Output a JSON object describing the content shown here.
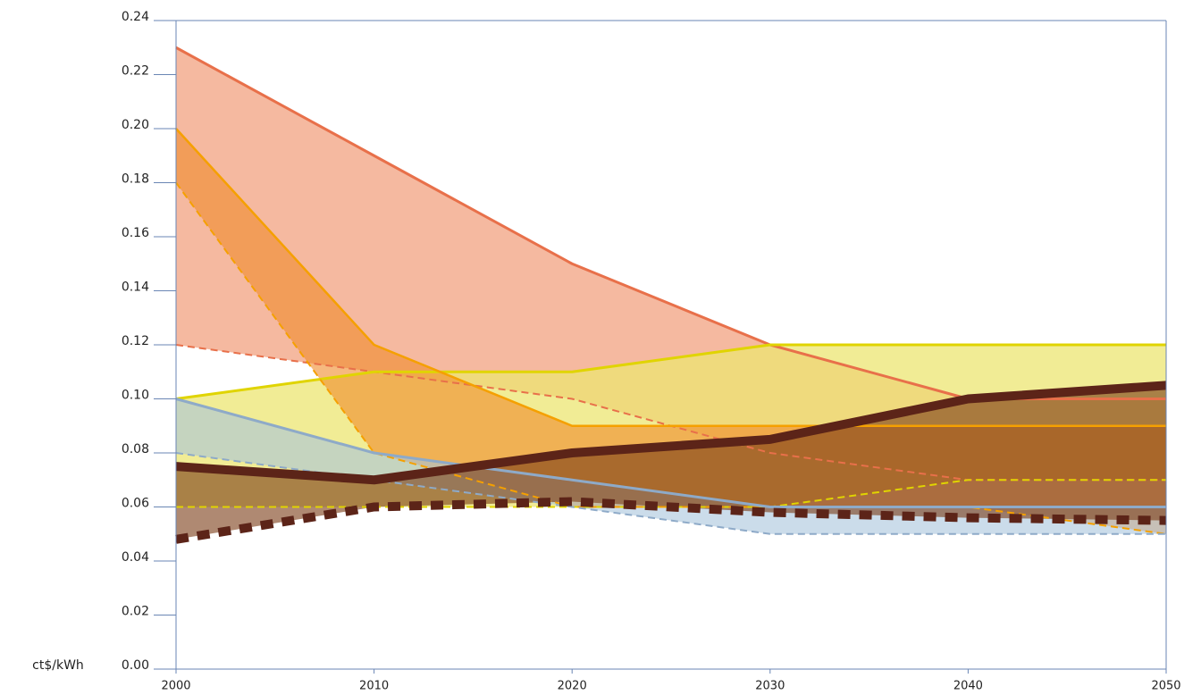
{
  "chart_data": {
    "type": "area",
    "ylabel": "ct$/kWh",
    "x": [
      2000,
      2010,
      2020,
      2030,
      2040,
      2050
    ],
    "xlim": [
      2000,
      2050
    ],
    "xticks": [
      2000,
      2010,
      2020,
      2030,
      2040,
      2050
    ],
    "ylim": [
      0,
      0.24
    ],
    "yticks": [
      {
        "value": 0,
        "label": "0.00"
      },
      {
        "value": 0.02,
        "label": "0.02"
      },
      {
        "value": 0.04,
        "label": "0.04"
      },
      {
        "value": 0.06,
        "label": "0.06"
      },
      {
        "value": 0.08,
        "label": "0.08"
      },
      {
        "value": 0.1,
        "label": "0.10"
      },
      {
        "value": 0.12,
        "label": "0.12"
      },
      {
        "value": 0.14,
        "label": "0.14"
      },
      {
        "value": 0.16,
        "label": "0.16"
      },
      {
        "value": 0.18,
        "label": "0.18"
      },
      {
        "value": 0.2,
        "label": "0.20"
      },
      {
        "value": 0.22,
        "label": "0.22"
      },
      {
        "value": 0.24,
        "label": "0.24"
      }
    ],
    "series": [
      {
        "color": "#e8704a",
        "fill": "#f5b9a0",
        "upper": [
          0.23,
          0.19,
          0.15,
          0.12,
          0.1,
          0.1
        ],
        "lower": [
          0.12,
          0.11,
          0.1,
          0.08,
          0.07,
          0.07
        ]
      },
      {
        "color": "#e0d400",
        "fill": "#ece672",
        "upper": [
          0.1,
          0.11,
          0.11,
          0.12,
          0.12,
          0.12
        ],
        "lower": [
          0.06,
          0.06,
          0.06,
          0.06,
          0.07,
          0.07
        ]
      },
      {
        "color": "#f5a000",
        "fill": "#f08a2a",
        "upper": [
          0.2,
          0.12,
          0.09,
          0.09,
          0.09,
          0.09
        ],
        "lower": [
          0.18,
          0.08,
          0.06,
          0.06,
          0.06,
          0.05
        ]
      },
      {
        "color": "#8eaac8",
        "fill": "#a8c4dc",
        "upper": [
          0.1,
          0.08,
          0.07,
          0.06,
          0.06,
          0.06
        ],
        "lower": [
          0.08,
          0.07,
          0.06,
          0.05,
          0.05,
          0.05
        ]
      },
      {
        "color": "#5c2418",
        "fill": "#7a3a14",
        "upper": [
          0.075,
          0.07,
          0.08,
          0.085,
          0.1,
          0.105
        ],
        "lower": [
          0.048,
          0.06,
          0.062,
          0.058,
          0.056,
          0.055
        ]
      }
    ]
  }
}
